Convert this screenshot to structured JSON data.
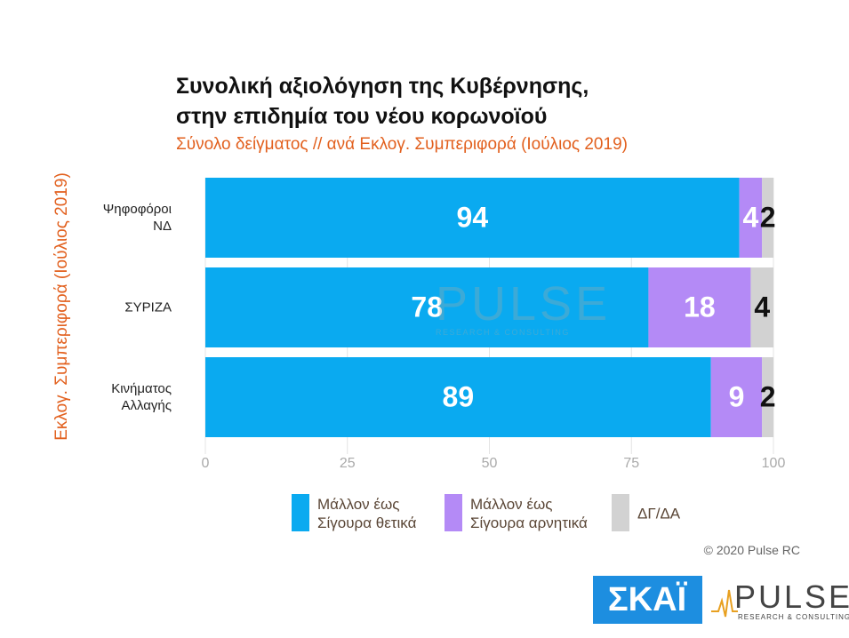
{
  "chart_data": {
    "type": "stacked-barh",
    "title": "Συνολική αξιολόγηση της Κυβέρνησης,\nστην επιδημία του νέου κορωνοϊού",
    "subtitle": "Σύνολο δείγματος // ανά Εκλογ. Συμπεριφορά (Ιούλιος 2019)",
    "y_label": "Εκλογ. Συμπεριφορά (Ιούλιος 2019)",
    "categories": [
      "Ψηφοφόροι\nΝΔ",
      "ΣΥΡΙΖΑ",
      "Κινήματος\nΑλλαγής"
    ],
    "series": [
      {
        "name": "Μάλλον έως\nΣίγουρα θετικά",
        "color": "#0aaaf0",
        "label_color": "#ffffff",
        "values": [
          94,
          78,
          89
        ]
      },
      {
        "name": "Μάλλον έως\nΣίγουρα αρνητικά",
        "color": "#b48af6",
        "label_color": "#ffffff",
        "values": [
          4,
          18,
          9
        ]
      },
      {
        "name": "ΔΓ/ΔΑ",
        "color": "#d2d2d2",
        "label_color": "#111111",
        "values": [
          2,
          4,
          2
        ]
      }
    ],
    "xlim": [
      0,
      100
    ],
    "xticks": [
      0,
      25,
      50,
      75,
      100
    ],
    "grid": true
  },
  "footer": {
    "copyright": "© 2020 Pulse RC",
    "logo_skai": "ΣΚΑΪ",
    "logo_pulse": "PULSE",
    "logo_pulse_sub": "RESEARCH & CONSULTING"
  }
}
